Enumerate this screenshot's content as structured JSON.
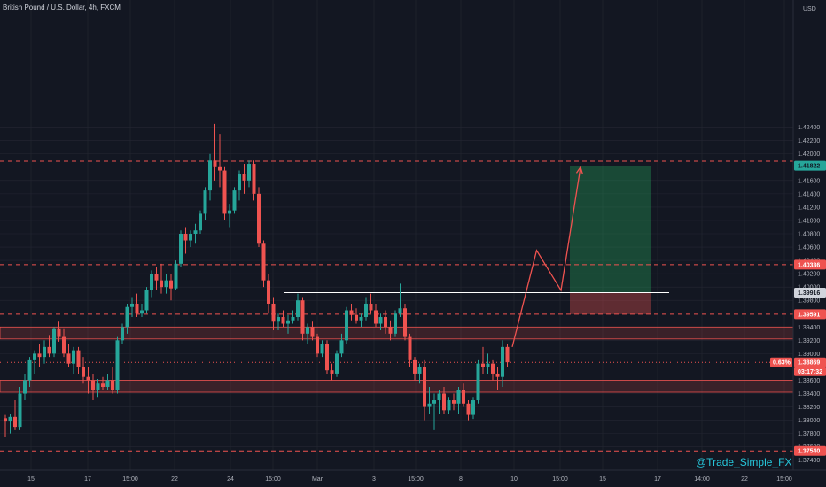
{
  "chart_data": {
    "type": "candlestick",
    "title": "British Pound / U.S. Dollar, 4h, FXCM",
    "currency": "USD",
    "watermark": "@Trade_Simple_FX",
    "ylim": [
      1.3725,
      1.4431
    ],
    "y_ticks": [
      "1.42400",
      "1.42200",
      "1.42000",
      "1.41600",
      "1.41400",
      "1.41200",
      "1.41000",
      "1.40800",
      "1.40600",
      "1.40400",
      "1.40200",
      "1.40000",
      "1.39800",
      "1.39400",
      "1.39200",
      "1.39000",
      "1.38600",
      "1.38400",
      "1.38200",
      "1.38000",
      "1.37800",
      "1.37600",
      "1.37400"
    ],
    "x_ticks": [
      "15",
      "17",
      "15:00",
      "22",
      "24",
      "15:00",
      "Mar",
      "3",
      "15:00",
      "8",
      "10",
      "15:00",
      "15",
      "17",
      "14:00",
      "22",
      "15:00"
    ],
    "colors": {
      "up": "#26a69a",
      "down": "#ef5350",
      "background": "#131722",
      "grid": "#242733"
    },
    "candles": [
      [
        1.3803,
        1.3808,
        1.3775,
        1.3798
      ],
      [
        1.3798,
        1.381,
        1.378,
        1.3805
      ],
      [
        1.3805,
        1.383,
        1.3785,
        1.379
      ],
      [
        1.379,
        1.385,
        1.3785,
        1.384
      ],
      [
        1.384,
        1.387,
        1.383,
        1.386
      ],
      [
        1.386,
        1.3895,
        1.385,
        1.389
      ],
      [
        1.389,
        1.3905,
        1.387,
        1.39
      ],
      [
        1.39,
        1.3915,
        1.388,
        1.3895
      ],
      [
        1.3895,
        1.392,
        1.3885,
        1.391
      ],
      [
        1.391,
        1.3928,
        1.3895,
        1.39
      ],
      [
        1.39,
        1.394,
        1.3895,
        1.3938
      ],
      [
        1.3938,
        1.3948,
        1.3918,
        1.3925
      ],
      [
        1.3925,
        1.3938,
        1.3895,
        1.39
      ],
      [
        1.39,
        1.3915,
        1.388,
        1.3885
      ],
      [
        1.3885,
        1.391,
        1.387,
        1.3905
      ],
      [
        1.3905,
        1.391,
        1.387,
        1.388
      ],
      [
        1.388,
        1.3895,
        1.3855,
        1.3865
      ],
      [
        1.3865,
        1.388,
        1.384,
        1.386
      ],
      [
        1.386,
        1.387,
        1.383,
        1.3845
      ],
      [
        1.3845,
        1.3862,
        1.3835,
        1.3855
      ],
      [
        1.3855,
        1.3865,
        1.3845,
        1.385
      ],
      [
        1.385,
        1.387,
        1.3845,
        1.386
      ],
      [
        1.386,
        1.388,
        1.384,
        1.3845
      ],
      [
        1.3845,
        1.3925,
        1.384,
        1.392
      ],
      [
        1.392,
        1.3945,
        1.3915,
        1.394
      ],
      [
        1.394,
        1.3975,
        1.393,
        1.397
      ],
      [
        1.397,
        1.3985,
        1.3955,
        1.3975
      ],
      [
        1.3975,
        1.399,
        1.3955,
        1.396
      ],
      [
        1.396,
        1.3975,
        1.3955,
        1.3965
      ],
      [
        1.3965,
        1.4,
        1.396,
        1.3995
      ],
      [
        1.3995,
        1.4025,
        1.3985,
        1.402
      ],
      [
        1.402,
        1.403,
        1.3995,
        1.401
      ],
      [
        1.401,
        1.4035,
        1.399,
        1.4
      ],
      [
        1.4,
        1.402,
        1.399,
        1.401
      ],
      [
        1.401,
        1.402,
        1.398,
        1.3998
      ],
      [
        1.3998,
        1.404,
        1.3995,
        1.4035
      ],
      [
        1.4035,
        1.4085,
        1.403,
        1.408
      ],
      [
        1.408,
        1.409,
        1.405,
        1.407
      ],
      [
        1.407,
        1.4085,
        1.406,
        1.408
      ],
      [
        1.408,
        1.4095,
        1.4065,
        1.4085
      ],
      [
        1.4085,
        1.4115,
        1.408,
        1.411
      ],
      [
        1.411,
        1.415,
        1.41,
        1.4145
      ],
      [
        1.4145,
        1.42,
        1.413,
        1.419
      ],
      [
        1.419,
        1.4245,
        1.416,
        1.418
      ],
      [
        1.418,
        1.423,
        1.415,
        1.4175
      ],
      [
        1.4175,
        1.418,
        1.41,
        1.411
      ],
      [
        1.411,
        1.4125,
        1.409,
        1.4115
      ],
      [
        1.4115,
        1.415,
        1.411,
        1.4145
      ],
      [
        1.4145,
        1.4175,
        1.413,
        1.417
      ],
      [
        1.417,
        1.4185,
        1.414,
        1.416
      ],
      [
        1.416,
        1.419,
        1.415,
        1.4185
      ],
      [
        1.4185,
        1.419,
        1.413,
        1.414
      ],
      [
        1.414,
        1.415,
        1.406,
        1.4065
      ],
      [
        1.4065,
        1.407,
        1.4,
        1.401
      ],
      [
        1.401,
        1.402,
        1.396,
        1.3975
      ],
      [
        1.3975,
        1.3985,
        1.3935,
        1.3948
      ],
      [
        1.3948,
        1.396,
        1.3935,
        1.3955
      ],
      [
        1.3955,
        1.3965,
        1.394,
        1.3945
      ],
      [
        1.3945,
        1.3958,
        1.393,
        1.395
      ],
      [
        1.395,
        1.3965,
        1.3945,
        1.3955
      ],
      [
        1.3955,
        1.399,
        1.395,
        1.398
      ],
      [
        1.398,
        1.3985,
        1.392,
        1.393
      ],
      [
        1.393,
        1.3945,
        1.3915,
        1.394
      ],
      [
        1.394,
        1.3948,
        1.392,
        1.3925
      ],
      [
        1.3925,
        1.393,
        1.3895,
        1.39
      ],
      [
        1.39,
        1.392,
        1.3895,
        1.3915
      ],
      [
        1.3915,
        1.392,
        1.387,
        1.3875
      ],
      [
        1.3875,
        1.3885,
        1.386,
        1.387
      ],
      [
        1.387,
        1.3905,
        1.3865,
        1.39
      ],
      [
        1.39,
        1.393,
        1.3895,
        1.392
      ],
      [
        1.392,
        1.397,
        1.3915,
        1.3965
      ],
      [
        1.3965,
        1.3975,
        1.395,
        1.3958
      ],
      [
        1.3958,
        1.3968,
        1.3945,
        1.395
      ],
      [
        1.395,
        1.396,
        1.394,
        1.3955
      ],
      [
        1.3955,
        1.3985,
        1.395,
        1.3975
      ],
      [
        1.3975,
        1.399,
        1.396,
        1.3965
      ],
      [
        1.3965,
        1.3975,
        1.394,
        1.3945
      ],
      [
        1.3945,
        1.396,
        1.3935,
        1.3955
      ],
      [
        1.3955,
        1.3965,
        1.393,
        1.394
      ],
      [
        1.394,
        1.395,
        1.392,
        1.393
      ],
      [
        1.393,
        1.3965,
        1.3925,
        1.396
      ],
      [
        1.396,
        1.4005,
        1.3955,
        1.3968
      ],
      [
        1.3968,
        1.3975,
        1.392,
        1.3925
      ],
      [
        1.3925,
        1.393,
        1.388,
        1.389
      ],
      [
        1.389,
        1.3895,
        1.386,
        1.387
      ],
      [
        1.387,
        1.3885,
        1.3855,
        1.388
      ],
      [
        1.388,
        1.389,
        1.38,
        1.382
      ],
      [
        1.382,
        1.385,
        1.381,
        1.3825
      ],
      [
        1.3825,
        1.384,
        1.3785,
        1.383
      ],
      [
        1.383,
        1.3845,
        1.381,
        1.384
      ],
      [
        1.384,
        1.385,
        1.381,
        1.3815
      ],
      [
        1.3815,
        1.3835,
        1.381,
        1.383
      ],
      [
        1.383,
        1.384,
        1.3815,
        1.3825
      ],
      [
        1.3825,
        1.385,
        1.381,
        1.3845
      ],
      [
        1.3845,
        1.3855,
        1.382,
        1.3825
      ],
      [
        1.3825,
        1.383,
        1.38,
        1.3808
      ],
      [
        1.3808,
        1.3835,
        1.3802,
        1.383
      ],
      [
        1.383,
        1.389,
        1.3825,
        1.3885
      ],
      [
        1.3885,
        1.391,
        1.387,
        1.388
      ],
      [
        1.388,
        1.39,
        1.387,
        1.3885
      ],
      [
        1.3885,
        1.389,
        1.386,
        1.387
      ],
      [
        1.387,
        1.388,
        1.3845,
        1.3865
      ],
      [
        1.3865,
        1.392,
        1.385,
        1.391
      ],
      [
        1.391,
        1.3915,
        1.388,
        1.3887
      ]
    ],
    "horizontal_lines": [
      {
        "price": 1.4189,
        "style": "dashed",
        "color": "#ef5350"
      },
      {
        "price": 1.40336,
        "style": "dashed",
        "color": "#ef5350"
      },
      {
        "price": 1.39916,
        "style": "solid",
        "color": "#ffffff"
      },
      {
        "price": 1.39591,
        "style": "dashed",
        "color": "#ef5350"
      },
      {
        "price": 1.38869,
        "style": "dotted",
        "color": "#ef5350"
      },
      {
        "price": 1.3754,
        "style": "dashed",
        "color": "#ef5350"
      }
    ],
    "zones": [
      {
        "top": 1.394,
        "bottom": 1.3922
      },
      {
        "top": 1.386,
        "bottom": 1.3842
      }
    ],
    "position": {
      "target": 1.41822,
      "entry": 1.39916,
      "stop": 1.39591
    },
    "projection_path": [
      [
        1.391,
        104
      ],
      [
        1.4055,
        109
      ],
      [
        1.3995,
        114
      ],
      [
        1.418,
        118
      ]
    ],
    "price_badges": [
      {
        "label": "1.41822",
        "price": 1.41822,
        "bg": "#26a69a",
        "fg": "#131722"
      },
      {
        "label": "1.40336",
        "price": 1.40336,
        "bg": "#ef5350",
        "fg": "#ffffff"
      },
      {
        "label": "1.39916",
        "price": 1.39916,
        "bg": "#d1d4dc",
        "fg": "#131722"
      },
      {
        "label": "1.39591",
        "price": 1.39591,
        "bg": "#ef5350",
        "fg": "#ffffff"
      },
      {
        "label": "1.38869",
        "price": 1.38869,
        "bg": "#ef5350",
        "fg": "#ffffff"
      },
      {
        "label": "1.37540",
        "price": 1.3754,
        "bg": "#ef5350",
        "fg": "#ffffff"
      }
    ],
    "current_change": "0.63%",
    "countdown": "03:17:32"
  }
}
